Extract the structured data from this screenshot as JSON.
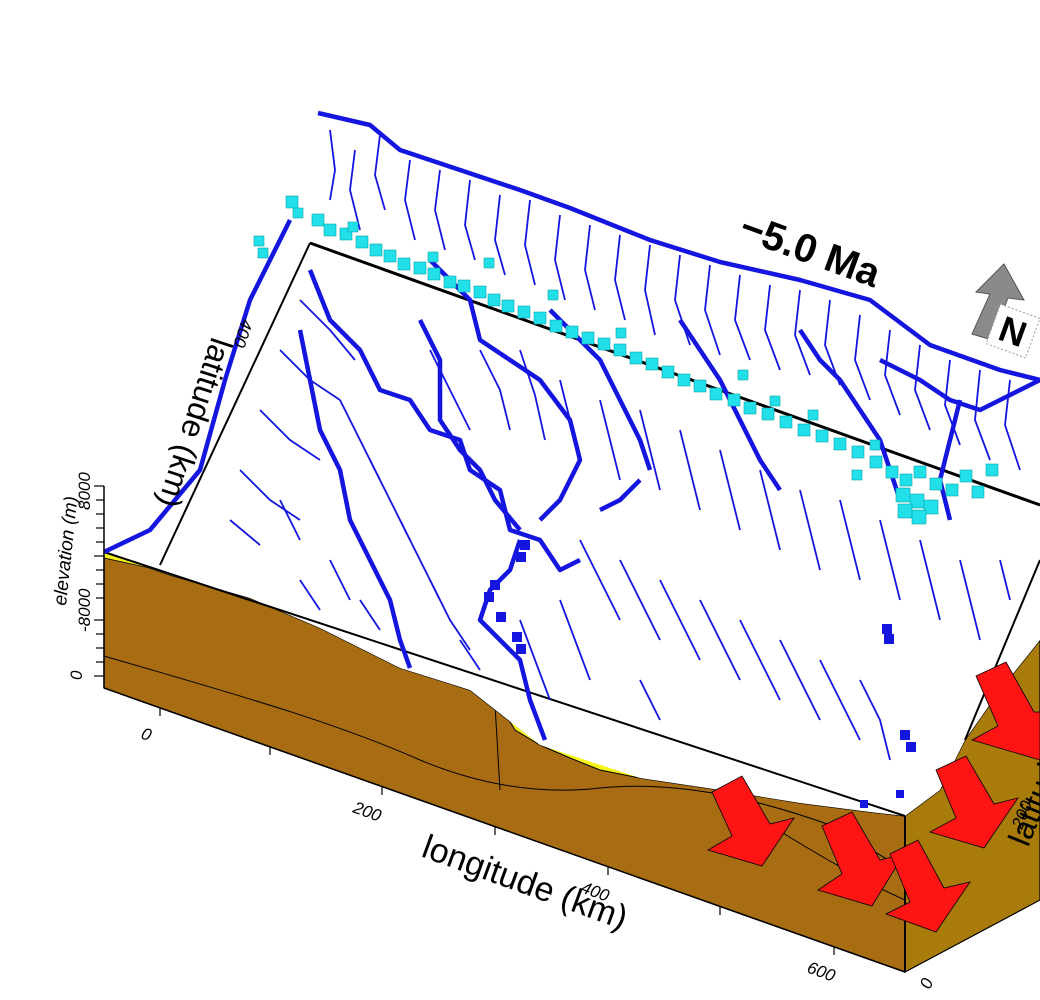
{
  "time_label": "−5.0 Ma",
  "north_label": "N",
  "axes": {
    "longitude": {
      "label": "longitude (km)",
      "ticks": [
        "0",
        "200",
        "400",
        "600"
      ]
    },
    "latitude": {
      "label": "latitude (km)",
      "ticks": [
        "0",
        "200",
        "400"
      ]
    },
    "elevation": {
      "label": "elevation (m)",
      "ticks": [
        "8000",
        "-8000",
        "0"
      ]
    }
  },
  "colors": {
    "rivers": "#1515e0",
    "coastline": "#22e0ea",
    "basement": "#a86d12",
    "basement_side": "#a87b0a",
    "sediment": "#f5f21a",
    "arrows": "#ff1414",
    "north_arrow": "#8a8a8a"
  }
}
